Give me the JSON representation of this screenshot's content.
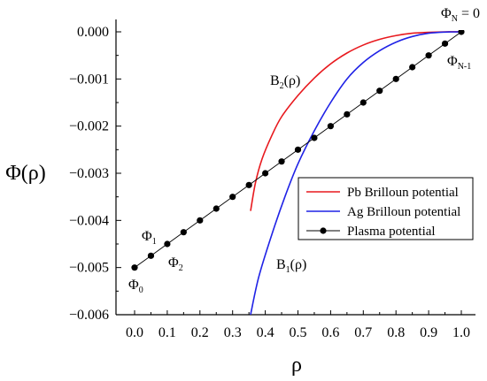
{
  "chart_data": {
    "type": "line",
    "title": "",
    "xlabel": "ρ",
    "ylabel": "Φ(ρ)",
    "xlim": [
      0.0,
      1.0
    ],
    "ylim": [
      -0.006,
      0.0
    ],
    "x_ticks": [
      "0.0",
      "0.1",
      "0.2",
      "0.3",
      "0.4",
      "0.5",
      "0.6",
      "0.7",
      "0.8",
      "0.9",
      "1.0"
    ],
    "x_tick_values": [
      0.0,
      0.1,
      0.2,
      0.3,
      0.4,
      0.5,
      0.6,
      0.7,
      0.8,
      0.9,
      1.0
    ],
    "y_ticks": [
      "0.000",
      "−0.001",
      "−0.002",
      "−0.003",
      "−0.004",
      "−0.005",
      "−0.006"
    ],
    "y_tick_values": [
      0.0,
      -0.001,
      -0.002,
      -0.003,
      -0.004,
      -0.005,
      -0.006
    ],
    "grid": false,
    "legend_position": "right-middle",
    "series": [
      {
        "name": "Pb Brilloun potential",
        "color": "#e8191e",
        "marker": "none",
        "x": [
          0.355,
          0.37,
          0.39,
          0.42,
          0.45,
          0.5,
          0.55,
          0.6,
          0.65,
          0.7,
          0.75,
          0.8,
          0.85,
          0.9,
          0.95,
          1.0
        ],
        "y": [
          -0.0038,
          -0.0032,
          -0.0027,
          -0.0022,
          -0.0018,
          -0.00135,
          -0.00098,
          -0.00068,
          -0.00045,
          -0.00028,
          -0.00016,
          -8e-05,
          -3e-05,
          -1e-05,
          0.0,
          0.0
        ]
      },
      {
        "name": "Ag Brilloun potential",
        "color": "#1f22e6",
        "marker": "none",
        "x": [
          0.355,
          0.38,
          0.42,
          0.46,
          0.5,
          0.55,
          0.6,
          0.65,
          0.7,
          0.75,
          0.8,
          0.85,
          0.9,
          0.95,
          1.0
        ],
        "y": [
          -0.006,
          -0.0052,
          -0.0043,
          -0.0035,
          -0.0028,
          -0.0021,
          -0.0015,
          -0.001,
          -0.00065,
          -0.0004,
          -0.00022,
          -0.0001,
          -3e-05,
          -5e-06,
          0.0
        ]
      },
      {
        "name": "Plasma potential",
        "color": "#000000",
        "marker": "circle",
        "x": [
          0.0,
          0.05,
          0.1,
          0.15,
          0.2,
          0.25,
          0.3,
          0.35,
          0.4,
          0.45,
          0.5,
          0.55,
          0.6,
          0.65,
          0.7,
          0.75,
          0.8,
          0.85,
          0.9,
          0.95,
          1.0
        ],
        "y": [
          -0.005,
          -0.00475,
          -0.0045,
          -0.00425,
          -0.004,
          -0.00375,
          -0.0035,
          -0.00325,
          -0.003,
          -0.00275,
          -0.0025,
          -0.00225,
          -0.002,
          -0.00175,
          -0.0015,
          -0.00125,
          -0.001,
          -0.00075,
          -0.0005,
          -0.00025,
          0.0
        ]
      }
    ],
    "annotations": [
      {
        "main": "Φ",
        "sub": "N",
        "suffix": " = 0"
      },
      {
        "main": "Φ",
        "sub": "N-1",
        "suffix": ""
      },
      {
        "main": "B",
        "sub": "2",
        "suffix": "(ρ)"
      },
      {
        "main": "B",
        "sub": "1",
        "suffix": "(ρ)"
      },
      {
        "main": "Φ",
        "sub": "1",
        "suffix": ""
      },
      {
        "main": "Φ",
        "sub": "2",
        "suffix": ""
      },
      {
        "main": "Φ",
        "sub": "0",
        "suffix": ""
      }
    ]
  }
}
